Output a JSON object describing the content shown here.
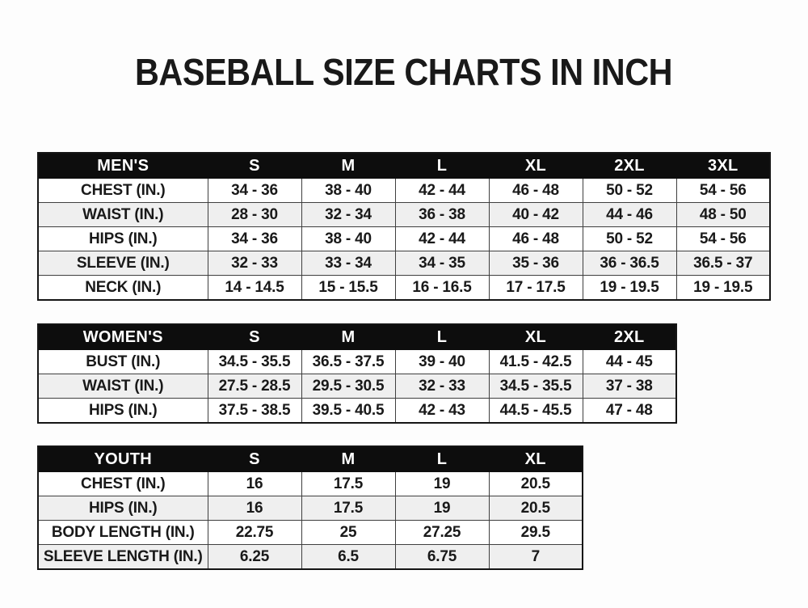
{
  "title": "BASEBALL SIZE CHARTS IN INCH",
  "colors": {
    "header_bg": "#0d0d0d",
    "header_text": "#ffffff",
    "row_alt_bg": "#efefef",
    "border": "#3f3f3f",
    "text": "#191919"
  },
  "chart_data": [
    {
      "type": "table",
      "header": [
        "MEN'S",
        "S",
        "M",
        "L",
        "XL",
        "2XL",
        "3XL"
      ],
      "rows": [
        [
          "CHEST (IN.)",
          "34 - 36",
          "38 - 40",
          "42 - 44",
          "46 - 48",
          "50 - 52",
          "54 - 56"
        ],
        [
          "WAIST (IN.)",
          "28 - 30",
          "32 - 34",
          "36 - 38",
          "40 - 42",
          "44 - 46",
          "48 - 50"
        ],
        [
          "HIPS (IN.)",
          "34 - 36",
          "38 - 40",
          "42 - 44",
          "46 - 48",
          "50 - 52",
          "54 - 56"
        ],
        [
          "SLEEVE (IN.)",
          "32 - 33",
          "33 - 34",
          "34 - 35",
          "35 - 36",
          "36 - 36.5",
          "36.5 - 37"
        ],
        [
          "NECK (IN.)",
          "14 - 14.5",
          "15 - 15.5",
          "16 - 16.5",
          "17 - 17.5",
          "19 - 19.5",
          "19 - 19.5"
        ]
      ]
    },
    {
      "type": "table",
      "header": [
        "WOMEN'S",
        "S",
        "M",
        "L",
        "XL",
        "2XL"
      ],
      "rows": [
        [
          "BUST (IN.)",
          "34.5 - 35.5",
          "36.5 - 37.5",
          "39 - 40",
          "41.5 - 42.5",
          "44 - 45"
        ],
        [
          "WAIST (IN.)",
          "27.5 - 28.5",
          "29.5 - 30.5",
          "32 - 33",
          "34.5 - 35.5",
          "37 - 38"
        ],
        [
          "HIPS (IN.)",
          "37.5 - 38.5",
          "39.5 - 40.5",
          "42 - 43",
          "44.5 - 45.5",
          "47 - 48"
        ]
      ]
    },
    {
      "type": "table",
      "header": [
        "YOUTH",
        "S",
        "M",
        "L",
        "XL"
      ],
      "rows": [
        [
          "CHEST (IN.)",
          "16",
          "17.5",
          "19",
          "20.5"
        ],
        [
          "HIPS (IN.)",
          "16",
          "17.5",
          "19",
          "20.5"
        ],
        [
          "BODY LENGTH (IN.)",
          "22.75",
          "25",
          "27.25",
          "29.5"
        ],
        [
          "SLEEVE LENGTH (IN.)",
          "6.25",
          "6.5",
          "6.75",
          "7"
        ]
      ]
    }
  ]
}
